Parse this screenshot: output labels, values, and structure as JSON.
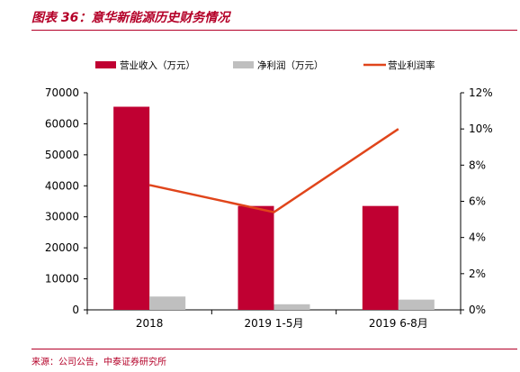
{
  "figure": {
    "title": "图表 36：意华新能源历史财务情况",
    "source": "来源：公司公告，中泰证券研究所"
  },
  "chart_data": {
    "type": "bar",
    "categories": [
      "2018",
      "2019 1-5月",
      "2019 6-8月"
    ],
    "series": [
      {
        "name": "营业收入（万元）",
        "type": "bar",
        "axis": "left",
        "values": [
          65500,
          33500,
          33500
        ],
        "color": "#c00032"
      },
      {
        "name": "净利润（万元）",
        "type": "bar",
        "axis": "left",
        "values": [
          4300,
          1800,
          3300
        ],
        "color": "#bfbfbf"
      },
      {
        "name": "营业利润率",
        "type": "line",
        "axis": "right",
        "values": [
          6.9,
          5.4,
          10.0
        ],
        "color": "#e0451b"
      }
    ],
    "y_left": {
      "min": 0,
      "max": 70000,
      "ticks": [
        0,
        10000,
        20000,
        30000,
        40000,
        50000,
        60000,
        70000
      ]
    },
    "y_right": {
      "min": 0,
      "max": 12,
      "ticks": [
        "0%",
        "2%",
        "4%",
        "6%",
        "8%",
        "10%",
        "12%"
      ]
    },
    "legend_position": "top",
    "grid": false
  }
}
